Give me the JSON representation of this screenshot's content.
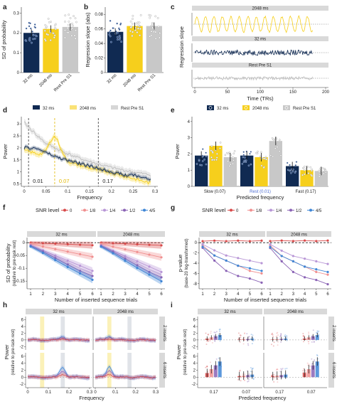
{
  "colors": {
    "navy": "#102a52",
    "yellow": "#f6cf1c",
    "grey": "#c8c8c8",
    "red": "#d84a4a",
    "blue": "#3f86d6",
    "purple": "#8a63b5",
    "band_y": "#fbf1b8",
    "band_g": "#e0e3e8"
  },
  "panel_labels": [
    "a",
    "b",
    "c",
    "d",
    "e",
    "f",
    "g",
    "h",
    "i"
  ],
  "chart_data": [
    {
      "id": "a",
      "type": "bar",
      "ylabel": "SD of probability",
      "categories": [
        "32 ms",
        "2048 ms",
        "Rest Pre S1"
      ],
      "values": [
        0.2,
        0.22,
        0.23
      ],
      "yticks": [
        "0",
        "0.1",
        "0.2",
        "0.3"
      ],
      "ylim": [
        0,
        0.33
      ]
    },
    {
      "id": "b",
      "type": "bar",
      "ylabel": "Regression slope (abs)",
      "categories": [
        "32 ms",
        "2048 ms",
        "Rest Pre S1"
      ],
      "values": [
        0.056,
        0.064,
        0.064
      ],
      "yticks": [
        "0",
        "0.02",
        "0.04",
        "0.06",
        "0.08"
      ],
      "ylim": [
        0,
        0.09
      ]
    },
    {
      "id": "c",
      "type": "line",
      "ylabel": "Regression slope",
      "xlabel": "Time (TRs)",
      "strips": [
        "2048 ms",
        "32 ms",
        "Rest Pre S1"
      ],
      "xticks": [
        "0",
        "50",
        "100",
        "150",
        "200"
      ],
      "xlim": [
        0,
        200
      ],
      "n_trs": 180
    },
    {
      "id": "d",
      "type": "line",
      "ylabel": "Power",
      "xlabel": "Frequency",
      "legend": [
        "32 ms",
        "2048 ms",
        "Rest Pre S1"
      ],
      "xticks": [
        "0",
        "0.05",
        "0.1",
        "0.15",
        "0.2",
        "0.25",
        "0.3"
      ],
      "yticks": [
        "0.5",
        "1",
        "1.5",
        "2",
        "2.5",
        "3"
      ],
      "xlim": [
        0,
        0.3
      ],
      "ylim": [
        0.4,
        3.3
      ],
      "vlines": [
        0.01,
        0.07,
        0.17
      ],
      "vline_labels": [
        "0.01",
        "0.07",
        "0.17"
      ]
    },
    {
      "id": "e",
      "type": "bar",
      "ylabel": "Power",
      "xlabel": "Predicted frequency",
      "legend": [
        "32 ms",
        "2048 ms",
        "Rest Pre S1"
      ],
      "categories": [
        "Slow (0.07)",
        "Rest (0.01)",
        "Fast (0.17)"
      ],
      "series": [
        {
          "name": "32 ms",
          "values": [
            1.9,
            1.9,
            1.25
          ]
        },
        {
          "name": "2048 ms",
          "values": [
            2.5,
            1.8,
            1.0
          ]
        },
        {
          "name": "Rest Pre S1",
          "values": [
            1.8,
            2.8,
            0.95
          ]
        }
      ],
      "yticks": [
        "0",
        "1",
        "2",
        "3",
        "4"
      ],
      "ylim": [
        0,
        4.3
      ]
    },
    {
      "id": "f",
      "type": "line",
      "title": "SNR level",
      "ylabel": "SD of probability",
      "ylabel2": "(relative to pre-task rest)",
      "xlabel": "Number of inserted sequence trials",
      "strips": [
        "32 ms",
        "2048 ms"
      ],
      "snr_levels": [
        "0",
        "1/8",
        "1/4",
        "1/2",
        "4/5"
      ],
      "xticks": [
        "1",
        "2",
        "3",
        "4",
        "5",
        "6"
      ],
      "yticks": [
        "0",
        "-0.05",
        "-0.1",
        "-0.15"
      ],
      "ylim": [
        -0.18,
        0.02
      ],
      "series": [
        {
          "name": "0",
          "values": [
            0,
            -0.002,
            -0.004,
            -0.006,
            -0.008,
            -0.01
          ]
        },
        {
          "name": "1/8",
          "values": [
            -0.005,
            -0.015,
            -0.025,
            -0.035,
            -0.045,
            -0.055
          ]
        },
        {
          "name": "1/4",
          "values": [
            -0.01,
            -0.03,
            -0.05,
            -0.07,
            -0.09,
            -0.11
          ]
        },
        {
          "name": "1/2",
          "values": [
            -0.012,
            -0.035,
            -0.06,
            -0.085,
            -0.11,
            -0.13
          ]
        },
        {
          "name": "4/5",
          "values": [
            -0.015,
            -0.04,
            -0.068,
            -0.095,
            -0.12,
            -0.145
          ]
        }
      ]
    },
    {
      "id": "g",
      "type": "line",
      "title": "SNR level",
      "ylabel": "p-value",
      "ylabel2": "(base-20 log-transformed)",
      "xlabel": "Number of inserted sequence trials",
      "strips": [
        "32 ms",
        "2048 ms"
      ],
      "snr_levels": [
        "0",
        "1/8",
        "1/4",
        "1/2",
        "4/5"
      ],
      "xticks": [
        "1",
        "2",
        "3",
        "4",
        "5",
        "6"
      ],
      "yticks": [
        "0",
        "-2",
        "-4",
        "-6",
        "-8"
      ],
      "ylim": [
        -9,
        1
      ],
      "series": [
        {
          "name": "0",
          "values": [
            0.3,
            0.4,
            0.3,
            0.4,
            0.3,
            0.4
          ]
        },
        {
          "name": "1/8",
          "values": [
            -0.5,
            -2.5,
            -3.5,
            -4.5,
            -5.5,
            -6.0
          ]
        },
        {
          "name": "1/4",
          "values": [
            -0.3,
            -1.5,
            -2.5,
            -3.0,
            -3.5,
            -4.0
          ]
        },
        {
          "name": "1/2",
          "values": [
            -1.0,
            -3.5,
            -5.5,
            -6.5,
            -7.0,
            -7.8
          ]
        },
        {
          "name": "4/5",
          "values": [
            -0.8,
            -2.5,
            -3.5,
            -4.5,
            -5.0,
            -5.5
          ]
        }
      ]
    },
    {
      "id": "h",
      "type": "line",
      "ylabel": "Power",
      "ylabel2": "(relative to pre-task rest)",
      "xlabel": "Frequency",
      "col_strips": [
        "32 ms",
        "2048 ms"
      ],
      "row_strips": [
        "2 inserts",
        "6 inserts"
      ],
      "xticks": [
        "0",
        "0.1",
        "0.2",
        "0.3"
      ],
      "yticks": [
        "-2",
        "0",
        "2",
        "4",
        "6"
      ],
      "ylim": [
        -3,
        7
      ]
    },
    {
      "id": "i",
      "type": "bar",
      "ylabel": "Power",
      "ylabel2": "(relative to pre-task rest)",
      "xlabel": "Predicted frequency",
      "col_strips": [
        "32 ms",
        "2048 ms"
      ],
      "row_strips": [
        "2 inserts",
        "6 inserts"
      ],
      "xticks": [
        "0.17",
        "0.07",
        "0.17",
        "0.07"
      ],
      "yticks": [
        "-2",
        "0",
        "2",
        "4",
        "6"
      ],
      "ylim": [
        -3,
        7
      ]
    }
  ]
}
